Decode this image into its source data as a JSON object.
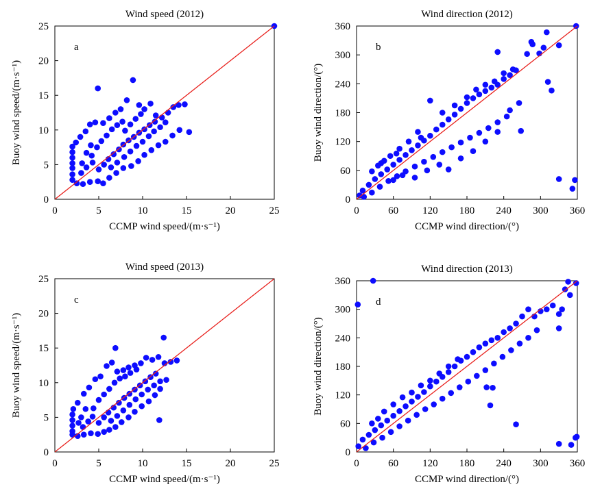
{
  "chart_data": [
    {
      "type": "scatter",
      "panel_letter": "a",
      "title": "Wind speed (2012)",
      "xlabel": "CCMP wind speed/(m·s⁻¹)",
      "ylabel": "Buoy wind speed/(m·s⁻¹)",
      "xlim": [
        0,
        25
      ],
      "ylim": [
        0,
        25
      ],
      "xticks": [
        0,
        5,
        10,
        15,
        20,
        25
      ],
      "yticks": [
        0,
        5,
        10,
        15,
        20,
        25
      ],
      "reference_line": {
        "from": [
          0,
          0
        ],
        "to": [
          25,
          25
        ],
        "color": "#e8201c"
      },
      "marker_color": "#0d0dff",
      "points": [
        [
          25.0,
          25.0
        ],
        [
          4.9,
          16.0
        ],
        [
          8.9,
          17.2
        ],
        [
          15.3,
          9.7
        ],
        [
          14.8,
          13.7
        ],
        [
          14.1,
          13.6
        ],
        [
          13.5,
          13.3
        ],
        [
          12.9,
          12.5
        ],
        [
          12.2,
          11.8
        ],
        [
          11.5,
          12.1
        ],
        [
          10.9,
          13.8
        ],
        [
          10.2,
          13.0
        ],
        [
          9.6,
          13.6
        ],
        [
          8.2,
          14.3
        ],
        [
          7.5,
          13.0
        ],
        [
          6.9,
          12.5
        ],
        [
          6.2,
          11.7
        ],
        [
          5.5,
          11.0
        ],
        [
          4.6,
          11.1
        ],
        [
          4.0,
          10.8
        ],
        [
          3.5,
          9.8
        ],
        [
          2.9,
          9.0
        ],
        [
          2.4,
          8.2
        ],
        [
          2.0,
          7.6
        ],
        [
          2.0,
          6.8
        ],
        [
          2.0,
          6.0
        ],
        [
          2.0,
          5.2
        ],
        [
          2.0,
          4.5
        ],
        [
          2.0,
          3.6
        ],
        [
          2.0,
          2.8
        ],
        [
          2.5,
          2.3
        ],
        [
          3.2,
          2.2
        ],
        [
          4.0,
          2.5
        ],
        [
          4.9,
          2.6
        ],
        [
          5.5,
          2.3
        ],
        [
          6.2,
          3.1
        ],
        [
          7.0,
          3.8
        ],
        [
          7.8,
          4.5
        ],
        [
          8.7,
          4.8
        ],
        [
          9.5,
          5.5
        ],
        [
          10.2,
          6.4
        ],
        [
          11.0,
          7.1
        ],
        [
          11.8,
          7.8
        ],
        [
          12.6,
          8.3
        ],
        [
          13.4,
          9.2
        ],
        [
          14.2,
          10.0
        ],
        [
          5.0,
          4.3
        ],
        [
          5.6,
          5.0
        ],
        [
          6.1,
          5.8
        ],
        [
          6.7,
          6.5
        ],
        [
          7.3,
          7.2
        ],
        [
          7.8,
          7.9
        ],
        [
          8.4,
          8.5
        ],
        [
          9.0,
          9.0
        ],
        [
          9.6,
          9.6
        ],
        [
          10.2,
          10.1
        ],
        [
          10.8,
          10.7
        ],
        [
          11.4,
          11.2
        ],
        [
          4.2,
          6.3
        ],
        [
          4.8,
          7.5
        ],
        [
          5.3,
          8.4
        ],
        [
          5.9,
          9.2
        ],
        [
          6.5,
          10.1
        ],
        [
          7.1,
          10.7
        ],
        [
          7.7,
          11.2
        ],
        [
          3.1,
          5.2
        ],
        [
          3.6,
          6.7
        ],
        [
          4.1,
          7.8
        ],
        [
          3.0,
          3.8
        ],
        [
          3.6,
          4.6
        ],
        [
          4.3,
          5.3
        ],
        [
          6.4,
          4.6
        ],
        [
          7.1,
          5.3
        ],
        [
          7.9,
          6.1
        ],
        [
          8.6,
          6.9
        ],
        [
          9.3,
          7.7
        ],
        [
          10.0,
          8.3
        ],
        [
          10.7,
          9.1
        ],
        [
          11.3,
          9.8
        ],
        [
          12.0,
          10.4
        ],
        [
          12.6,
          11.1
        ],
        [
          8.0,
          9.9
        ],
        [
          8.6,
          10.8
        ],
        [
          9.2,
          11.6
        ],
        [
          9.8,
          12.3
        ]
      ]
    },
    {
      "type": "scatter",
      "panel_letter": "b",
      "title": "Wind direction (2012)",
      "xlabel": "CCMP wind direction/(°)",
      "ylabel": "Buoy wind direction/(°)",
      "xlim": [
        0,
        360
      ],
      "ylim": [
        0,
        360
      ],
      "xticks": [
        0,
        60,
        120,
        180,
        240,
        300,
        360
      ],
      "yticks": [
        0,
        60,
        120,
        180,
        240,
        300,
        360
      ],
      "reference_line": {
        "from": [
          0,
          0
        ],
        "to": [
          360,
          360
        ],
        "color": "#e8201c"
      },
      "marker_color": "#0d0dff",
      "points": [
        [
          358,
          360
        ],
        [
          310,
          347
        ],
        [
          285,
          327
        ],
        [
          287,
          322
        ],
        [
          330,
          320
        ],
        [
          305,
          315
        ],
        [
          298,
          303
        ],
        [
          278,
          302
        ],
        [
          230,
          306
        ],
        [
          312,
          244
        ],
        [
          318,
          226
        ],
        [
          268,
          142
        ],
        [
          330,
          42
        ],
        [
          356,
          40
        ],
        [
          352,
          22
        ],
        [
          260,
          268
        ],
        [
          250,
          258
        ],
        [
          240,
          250
        ],
        [
          230,
          238
        ],
        [
          220,
          232
        ],
        [
          210,
          225
        ],
        [
          200,
          218
        ],
        [
          190,
          210
        ],
        [
          180,
          200
        ],
        [
          170,
          188
        ],
        [
          160,
          176
        ],
        [
          150,
          166
        ],
        [
          140,
          155
        ],
        [
          130,
          145
        ],
        [
          120,
          132
        ],
        [
          110,
          122
        ],
        [
          100,
          112
        ],
        [
          90,
          102
        ],
        [
          80,
          92
        ],
        [
          70,
          82
        ],
        [
          60,
          72
        ],
        [
          50,
          62
        ],
        [
          40,
          52
        ],
        [
          30,
          42
        ],
        [
          20,
          30
        ],
        [
          10,
          18
        ],
        [
          5,
          8
        ],
        [
          12,
          5
        ],
        [
          25,
          14
        ],
        [
          38,
          26
        ],
        [
          52,
          38
        ],
        [
          66,
          48
        ],
        [
          80,
          58
        ],
        [
          95,
          68
        ],
        [
          110,
          78
        ],
        [
          125,
          88
        ],
        [
          140,
          98
        ],
        [
          155,
          108
        ],
        [
          170,
          118
        ],
        [
          185,
          128
        ],
        [
          200,
          138
        ],
        [
          215,
          148
        ],
        [
          230,
          160
        ],
        [
          245,
          172
        ],
        [
          120,
          205
        ],
        [
          140,
          180
        ],
        [
          160,
          195
        ],
        [
          180,
          212
        ],
        [
          195,
          228
        ],
        [
          210,
          238
        ],
        [
          225,
          245
        ],
        [
          240,
          262
        ],
        [
          255,
          270
        ],
        [
          100,
          140
        ],
        [
          85,
          120
        ],
        [
          70,
          105
        ],
        [
          55,
          90
        ],
        [
          40,
          75
        ],
        [
          25,
          58
        ],
        [
          60,
          40
        ],
        [
          75,
          50
        ],
        [
          95,
          45
        ],
        [
          115,
          60
        ],
        [
          135,
          72
        ],
        [
          150,
          62
        ],
        [
          170,
          85
        ],
        [
          190,
          100
        ],
        [
          210,
          120
        ],
        [
          230,
          140
        ],
        [
          250,
          185
        ],
        [
          265,
          200
        ],
        [
          35,
          70
        ],
        [
          45,
          80
        ],
        [
          65,
          95
        ],
        [
          105,
          128
        ]
      ]
    },
    {
      "type": "scatter",
      "panel_letter": "c",
      "title": "Wind speed (2013)",
      "xlabel": "CCMP wind speed/(m·s⁻¹)",
      "ylabel": "Buoy wind speed/(m·s⁻¹)",
      "xlim": [
        0,
        25
      ],
      "ylim": [
        0,
        25
      ],
      "xticks": [
        0,
        5,
        10,
        15,
        20,
        25
      ],
      "yticks": [
        0,
        5,
        10,
        15,
        20,
        25
      ],
      "reference_line": {
        "from": [
          0,
          0
        ],
        "to": [
          25,
          25
        ],
        "color": "#e8201c"
      },
      "marker_color": "#0d0dff",
      "points": [
        [
          12.4,
          16.5
        ],
        [
          6.9,
          15.0
        ],
        [
          13.9,
          13.2
        ],
        [
          13.2,
          13.0
        ],
        [
          12.5,
          12.8
        ],
        [
          11.8,
          13.7
        ],
        [
          11.1,
          13.3
        ],
        [
          10.4,
          13.6
        ],
        [
          9.8,
          12.8
        ],
        [
          9.1,
          12.5
        ],
        [
          8.4,
          12.2
        ],
        [
          7.8,
          11.8
        ],
        [
          7.1,
          11.6
        ],
        [
          6.5,
          12.9
        ],
        [
          5.9,
          12.4
        ],
        [
          5.2,
          10.9
        ],
        [
          4.6,
          10.5
        ],
        [
          3.9,
          9.3
        ],
        [
          3.3,
          8.4
        ],
        [
          2.6,
          7.1
        ],
        [
          2.1,
          6.2
        ],
        [
          2.0,
          5.4
        ],
        [
          2.0,
          4.6
        ],
        [
          2.0,
          3.8
        ],
        [
          2.0,
          3.0
        ],
        [
          2.0,
          2.5
        ],
        [
          2.6,
          2.3
        ],
        [
          3.3,
          2.5
        ],
        [
          4.1,
          2.7
        ],
        [
          4.9,
          2.6
        ],
        [
          5.6,
          2.9
        ],
        [
          6.2,
          3.2
        ],
        [
          6.9,
          3.6
        ],
        [
          7.6,
          4.3
        ],
        [
          8.4,
          5.0
        ],
        [
          9.1,
          5.8
        ],
        [
          9.9,
          6.6
        ],
        [
          10.7,
          7.3
        ],
        [
          11.4,
          8.2
        ],
        [
          12.0,
          9.1
        ],
        [
          12.7,
          10.4
        ],
        [
          11.9,
          4.6
        ],
        [
          5.0,
          4.2
        ],
        [
          5.6,
          5.0
        ],
        [
          6.1,
          5.7
        ],
        [
          6.7,
          6.4
        ],
        [
          7.3,
          7.1
        ],
        [
          7.9,
          7.8
        ],
        [
          8.5,
          8.4
        ],
        [
          9.1,
          9.0
        ],
        [
          9.7,
          9.6
        ],
        [
          10.3,
          10.2
        ],
        [
          10.9,
          10.8
        ],
        [
          11.5,
          11.3
        ],
        [
          3.2,
          3.6
        ],
        [
          3.8,
          4.4
        ],
        [
          4.3,
          5.1
        ],
        [
          4.4,
          6.3
        ],
        [
          5.0,
          7.5
        ],
        [
          5.6,
          8.3
        ],
        [
          6.2,
          9.1
        ],
        [
          6.8,
          10.0
        ],
        [
          7.4,
          10.6
        ],
        [
          8.0,
          10.9
        ],
        [
          6.4,
          4.5
        ],
        [
          7.1,
          5.2
        ],
        [
          7.8,
          6.0
        ],
        [
          8.5,
          6.8
        ],
        [
          9.2,
          7.6
        ],
        [
          9.9,
          8.3
        ],
        [
          10.6,
          9.0
        ],
        [
          11.3,
          9.6
        ],
        [
          12.0,
          10.2
        ],
        [
          8.6,
          11.4
        ],
        [
          9.3,
          11.9
        ],
        [
          3.0,
          5.0
        ],
        [
          3.5,
          6.2
        ],
        [
          2.7,
          4.2
        ]
      ]
    },
    {
      "type": "scatter",
      "panel_letter": "d",
      "title": "Wind direction (2013)",
      "xlabel": "CCMP wind direction/(°)",
      "ylabel": "Buoy wind direction/(°)",
      "xlim": [
        0,
        360
      ],
      "ylim": [
        0,
        360
      ],
      "xticks": [
        0,
        60,
        120,
        180,
        240,
        300,
        360
      ],
      "yticks": [
        0,
        60,
        120,
        180,
        240,
        300,
        360
      ],
      "reference_line": {
        "from": [
          0,
          0
        ],
        "to": [
          360,
          360
        ],
        "color": "#e8201c"
      },
      "marker_color": "#0d0dff",
      "points": [
        [
          2,
          310
        ],
        [
          27,
          360
        ],
        [
          358,
          355
        ],
        [
          345,
          358
        ],
        [
          340,
          342
        ],
        [
          348,
          330
        ],
        [
          335,
          300
        ],
        [
          330,
          260
        ],
        [
          330,
          290
        ],
        [
          320,
          308
        ],
        [
          310,
          300
        ],
        [
          300,
          296
        ],
        [
          290,
          285
        ],
        [
          280,
          300
        ],
        [
          270,
          285
        ],
        [
          260,
          270
        ],
        [
          250,
          260
        ],
        [
          240,
          252
        ],
        [
          230,
          240
        ],
        [
          220,
          235
        ],
        [
          210,
          228
        ],
        [
          200,
          220
        ],
        [
          190,
          210
        ],
        [
          180,
          200
        ],
        [
          170,
          192
        ],
        [
          160,
          180
        ],
        [
          150,
          168
        ],
        [
          140,
          158
        ],
        [
          130,
          148
        ],
        [
          120,
          138
        ],
        [
          110,
          126
        ],
        [
          100,
          116
        ],
        [
          90,
          106
        ],
        [
          80,
          96
        ],
        [
          70,
          86
        ],
        [
          60,
          76
        ],
        [
          50,
          66
        ],
        [
          40,
          56
        ],
        [
          30,
          46
        ],
        [
          20,
          36
        ],
        [
          10,
          26
        ],
        [
          3,
          12
        ],
        [
          15,
          8
        ],
        [
          28,
          20
        ],
        [
          42,
          30
        ],
        [
          56,
          42
        ],
        [
          70,
          54
        ],
        [
          84,
          66
        ],
        [
          98,
          78
        ],
        [
          112,
          90
        ],
        [
          126,
          100
        ],
        [
          140,
          112
        ],
        [
          154,
          124
        ],
        [
          168,
          136
        ],
        [
          182,
          148
        ],
        [
          196,
          160
        ],
        [
          210,
          172
        ],
        [
          224,
          186
        ],
        [
          238,
          200
        ],
        [
          252,
          214
        ],
        [
          266,
          228
        ],
        [
          280,
          240
        ],
        [
          294,
          256
        ],
        [
          260,
          58
        ],
        [
          218,
          98
        ],
        [
          222,
          135
        ],
        [
          212,
          136
        ],
        [
          330,
          17
        ],
        [
          350,
          15
        ],
        [
          357,
          30
        ],
        [
          359,
          32
        ],
        [
          60,
          100
        ],
        [
          75,
          115
        ],
        [
          90,
          125
        ],
        [
          105,
          140
        ],
        [
          120,
          150
        ],
        [
          135,
          165
        ],
        [
          150,
          180
        ],
        [
          165,
          195
        ],
        [
          45,
          85
        ],
        [
          35,
          70
        ],
        [
          25,
          60
        ]
      ]
    }
  ]
}
